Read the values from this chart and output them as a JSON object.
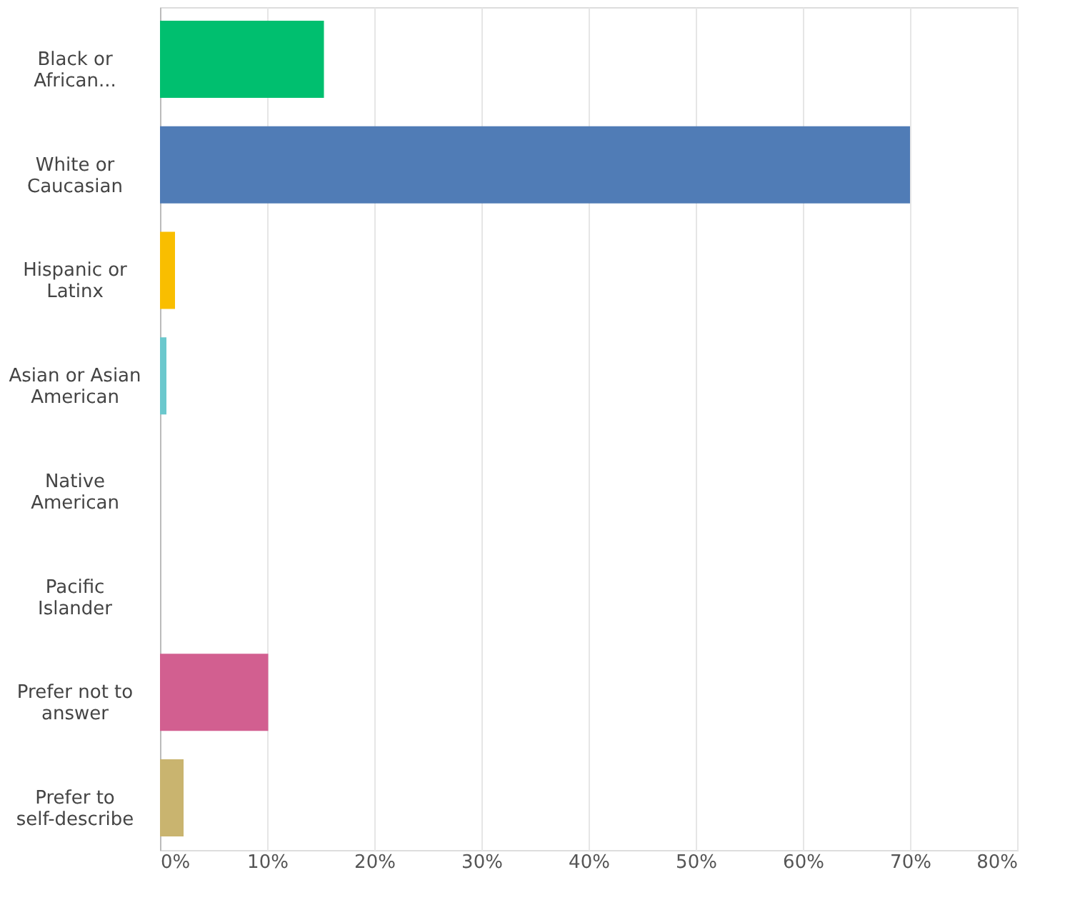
{
  "chart_data": {
    "type": "bar",
    "orientation": "horizontal",
    "categories": [
      "Black or African...",
      "White or Caucasian",
      "Hispanic or Latinx",
      "Asian or Asian American",
      "Native American",
      "Pacific Islander",
      "Prefer not to answer",
      "Prefer to self-describe"
    ],
    "values": [
      15.3,
      70,
      1.4,
      0.6,
      0,
      0,
      10.1,
      2.2
    ],
    "colors": [
      "#00bf6f",
      "#507cb6",
      "#f9be00",
      "#6bc8cd",
      "#9d5ce5",
      "#f05b24",
      "#d25f90",
      "#c9b46f"
    ],
    "xlim": [
      0,
      80
    ],
    "xticks": [
      {
        "value": 0,
        "label": "0%"
      },
      {
        "value": 10,
        "label": "10%"
      },
      {
        "value": 20,
        "label": "20%"
      },
      {
        "value": 30,
        "label": "30%"
      },
      {
        "value": 40,
        "label": "40%"
      },
      {
        "value": 50,
        "label": "50%"
      },
      {
        "value": 60,
        "label": "60%"
      },
      {
        "value": 70,
        "label": "70%"
      },
      {
        "value": 80,
        "label": "80%"
      }
    ],
    "grid": "x"
  }
}
